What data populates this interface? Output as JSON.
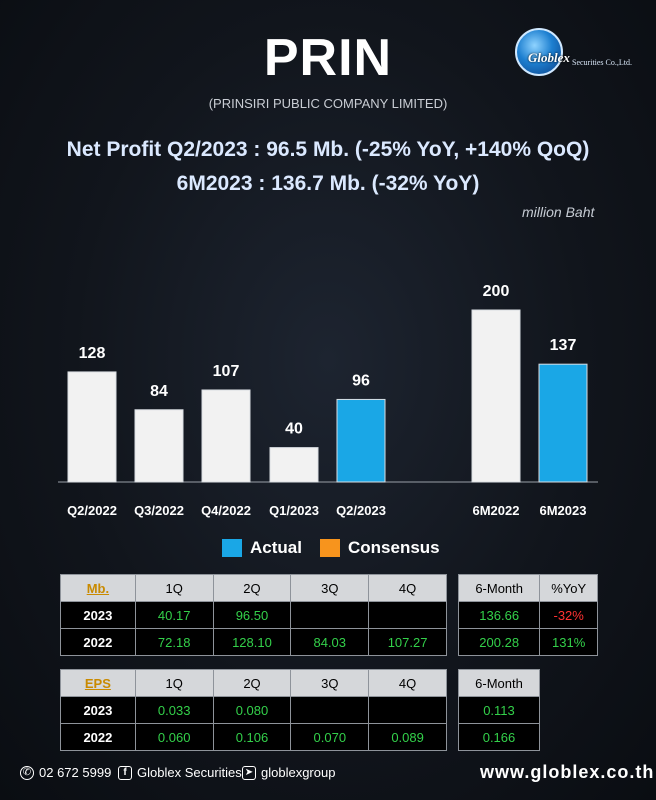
{
  "header": {
    "ticker": "PRIN",
    "company": "(PRINSIRI PUBLIC COMPANY LIMITED)",
    "brand_logo": "Globlex",
    "brand_logo_sub": "Securities Co.,Ltd."
  },
  "headline": {
    "line1": "Net Profit  Q2/2023 : 96.5 Mb. (-25% YoY, +140% QoQ)",
    "line2": "6M2023 : 136.7 Mb. (-32% YoY)",
    "unit": "million Baht"
  },
  "chart_data": {
    "type": "bar",
    "categories": [
      "Q2/2022",
      "Q3/2022",
      "Q4/2022",
      "Q1/2023",
      "Q2/2023",
      "6M2022",
      "6M2023"
    ],
    "values": [
      128,
      84,
      107,
      40,
      96,
      200,
      137
    ],
    "data_labels": [
      "128",
      "84",
      "107",
      "40",
      "96",
      "200",
      "137"
    ],
    "highlight": [
      false,
      false,
      false,
      false,
      true,
      false,
      true
    ],
    "series": [
      {
        "name": "Actual",
        "color": "#1aa7e6"
      },
      {
        "name": "Consensus",
        "color": "#f7941d"
      }
    ],
    "bar_color": "#f2f2f2",
    "highlight_color": "#1aa7e6",
    "legend_position": "bottom-center"
  },
  "legend": {
    "actual_label": "Actual",
    "consensus_label": "Consensus",
    "actual_color": "#1aa7e6",
    "consensus_color": "#f7941d"
  },
  "profit_table": {
    "key": "Mb.",
    "cols": [
      "1Q",
      "2Q",
      "3Q",
      "4Q"
    ],
    "rows": [
      {
        "year": "2023",
        "values": [
          "40.17",
          "96.50",
          "",
          ""
        ]
      },
      {
        "year": "2022",
        "values": [
          "72.18",
          "128.10",
          "84.03",
          "107.27"
        ]
      }
    ]
  },
  "profit_6m_table": {
    "cols": [
      "6-Month",
      "%YoY"
    ],
    "rows": [
      {
        "values": [
          "136.66",
          "-32%"
        ]
      },
      {
        "values": [
          "200.28",
          "131%"
        ]
      }
    ]
  },
  "eps_table": {
    "key": "EPS",
    "cols": [
      "1Q",
      "2Q",
      "3Q",
      "4Q"
    ],
    "rows": [
      {
        "year": "2023",
        "values": [
          "0.033",
          "0.080",
          "",
          ""
        ]
      },
      {
        "year": "2022",
        "values": [
          "0.060",
          "0.106",
          "0.070",
          "0.089"
        ]
      }
    ]
  },
  "eps_6m_table": {
    "cols": [
      "6-Month"
    ],
    "rows": [
      {
        "values": [
          "0.113"
        ]
      },
      {
        "values": [
          "0.166"
        ]
      }
    ]
  },
  "footer": {
    "phone": "02 672 5999",
    "facebook": "Globlex Securities",
    "telegram": "globlexgroup",
    "website": "www.globlex.co.th",
    "phone_icon": "phone-icon",
    "facebook_icon": "facebook-icon",
    "telegram_icon": "telegram-icon"
  }
}
